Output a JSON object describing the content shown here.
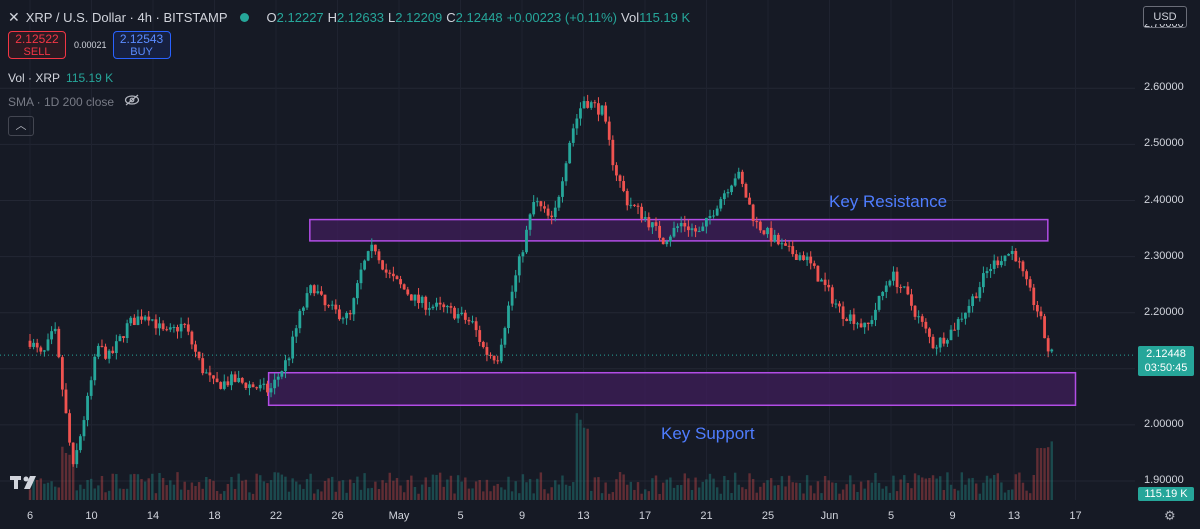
{
  "header": {
    "close_icon": "close-icon",
    "title": "XRP / U.S. Dollar · 4h · BITSTAMP",
    "market_status_color": "#26a69a",
    "ohlc": {
      "o_label": "O",
      "o": "2.12227",
      "h_label": "H",
      "h": "2.12633",
      "l_label": "L",
      "l": "2.12209",
      "c_label": "C",
      "c": "2.12448",
      "change": "+0.00223 (+0.11%)",
      "vol_label": "Vol",
      "vol": "115.19 K"
    }
  },
  "trade": {
    "sell_price": "2.12522",
    "sell_label": "SELL",
    "spread": "0.00021",
    "buy_price": "2.12543",
    "buy_label": "BUY"
  },
  "indicators": {
    "vol_label": "Vol · XRP",
    "vol_value": "115.19 K",
    "sma_label": "SMA · 1D 200 close",
    "eye_icon": "eye-crossed-icon",
    "collapse_icon": "chevron-up-icon"
  },
  "currency_button": "USD",
  "last_price": {
    "price": "2.12448",
    "countdown": "03:50:45",
    "volume": "115.19 K"
  },
  "annotations": {
    "resistance": "Key Resistance",
    "support": "Key Support"
  },
  "colors": {
    "up": "#26a69a",
    "down": "#ef5350",
    "zone_stroke": "#b24de6",
    "zone_fill": "#3f1e5a",
    "annotation": "#4f7dff",
    "background": "#161a25"
  },
  "chart_data": {
    "type": "candlestick",
    "ylim": [
      1.88,
      2.7
    ],
    "y_ticks": [
      "2.60000",
      "2.50000",
      "2.40000",
      "2.30000",
      "2.20000",
      "2.10000",
      "2.00000",
      "1.90000"
    ],
    "y_top_partial": "2.70000",
    "x_ticks": [
      "6",
      "10",
      "14",
      "18",
      "22",
      "26",
      "May",
      "5",
      "9",
      "13",
      "17",
      "21",
      "25",
      "Jun",
      "5",
      "9",
      "13",
      "17"
    ],
    "last_price": 2.12448,
    "zones": [
      {
        "name": "Key Resistance",
        "low": 2.328,
        "high": 2.366,
        "from_tick": 4.55,
        "to_tick": 16.55
      },
      {
        "name": "Key Support",
        "low": 2.035,
        "high": 2.093,
        "from_tick": 3.88,
        "to_tick": 17.0
      }
    ],
    "price_path": [
      [
        0,
        2.15
      ],
      [
        0.2,
        2.12
      ],
      [
        0.4,
        2.17
      ],
      [
        0.7,
        1.92
      ],
      [
        0.95,
        2.05
      ],
      [
        1.1,
        2.14
      ],
      [
        1.3,
        2.12
      ],
      [
        1.6,
        2.18
      ],
      [
        1.9,
        2.2
      ],
      [
        2.2,
        2.16
      ],
      [
        2.5,
        2.18
      ],
      [
        2.8,
        2.1
      ],
      [
        3.0,
        2.07
      ],
      [
        3.3,
        2.08
      ],
      [
        3.6,
        2.07
      ],
      [
        3.9,
        2.06
      ],
      [
        4.2,
        2.12
      ],
      [
        4.4,
        2.2
      ],
      [
        4.6,
        2.25
      ],
      [
        4.8,
        2.21
      ],
      [
        5.0,
        2.2
      ],
      [
        5.2,
        2.19
      ],
      [
        5.4,
        2.28
      ],
      [
        5.6,
        2.32
      ],
      [
        5.8,
        2.27
      ],
      [
        6.0,
        2.25
      ],
      [
        6.3,
        2.22
      ],
      [
        6.6,
        2.21
      ],
      [
        6.9,
        2.2
      ],
      [
        7.2,
        2.18
      ],
      [
        7.4,
        2.13
      ],
      [
        7.6,
        2.12
      ],
      [
        7.8,
        2.22
      ],
      [
        8.0,
        2.31
      ],
      [
        8.2,
        2.4
      ],
      [
        8.5,
        2.36
      ],
      [
        8.8,
        2.52
      ],
      [
        9.0,
        2.58
      ],
      [
        9.3,
        2.56
      ],
      [
        9.5,
        2.46
      ],
      [
        9.7,
        2.4
      ],
      [
        10.0,
        2.37
      ],
      [
        10.3,
        2.33
      ],
      [
        10.6,
        2.36
      ],
      [
        10.9,
        2.34
      ],
      [
        11.2,
        2.4
      ],
      [
        11.5,
        2.45
      ],
      [
        11.8,
        2.36
      ],
      [
        12.0,
        2.34
      ],
      [
        12.3,
        2.31
      ],
      [
        12.6,
        2.3
      ],
      [
        12.9,
        2.25
      ],
      [
        13.2,
        2.2
      ],
      [
        13.4,
        2.19
      ],
      [
        13.6,
        2.17
      ],
      [
        13.8,
        2.22
      ],
      [
        14.0,
        2.27
      ],
      [
        14.2,
        2.24
      ],
      [
        14.4,
        2.2
      ],
      [
        14.7,
        2.14
      ],
      [
        15.0,
        2.17
      ],
      [
        15.3,
        2.22
      ],
      [
        15.6,
        2.28
      ],
      [
        15.8,
        2.3
      ],
      [
        16.0,
        2.31
      ],
      [
        16.2,
        2.25
      ],
      [
        16.4,
        2.2
      ],
      [
        16.55,
        2.135
      ],
      [
        16.62,
        2.125
      ]
    ],
    "volume_levels": {
      "typical": "30-60% of panel",
      "spikes": [
        {
          "at_tick": 0.6,
          "level": "high"
        },
        {
          "at_tick": 9.0,
          "level": "very high"
        },
        {
          "at_tick": 16.5,
          "level": "high"
        }
      ]
    }
  }
}
